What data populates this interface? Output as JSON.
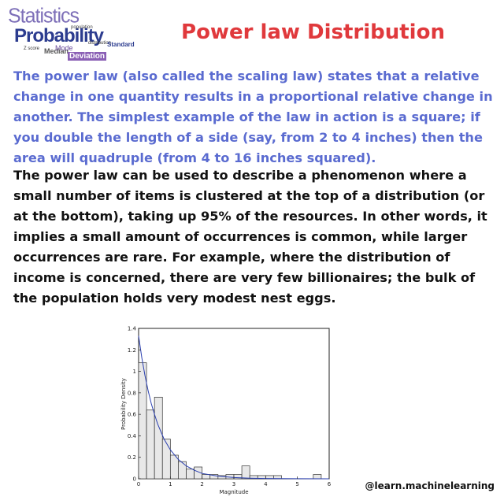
{
  "logo": {
    "statistics": "Statistics",
    "probability": "Probability",
    "population": "population",
    "median": "Median",
    "mode": "Mode",
    "distribution": "distribution",
    "standard": "Standard",
    "deviation": "Deviation",
    "zscore": "Z score"
  },
  "title": "Power law Distribution",
  "paragraph1": "The power law (also called the scaling law) states that a relative change in one quantity results in a proportional relative change in another. The simplest example of the law in action is a square; if you double the length of a side (say, from 2 to 4 inches) then the area will quadruple (from 4 to 16 inches squared).",
  "paragraph2": "The power law can be used to describe a phenomenon where a small number of items is clustered at the top of a distribution (or at the bottom), taking up 95% of the resources. In other words, it implies a small amount of occurrences is common, while larger occurrences are rare. For example, where the distribution of income is concerned, there are very few billionaires; the bulk of the population holds very modest nest eggs.",
  "chart_data": {
    "type": "bar",
    "xlabel": "Magnitude",
    "ylabel": "Probability Density",
    "xlim": [
      0,
      6
    ],
    "ylim": [
      0,
      1.4
    ],
    "xticks": [
      "0",
      "1",
      "2",
      "3",
      "4",
      "5",
      "6"
    ],
    "yticks": [
      "0",
      "0.2",
      "0.4",
      "0.6",
      "0.8",
      "1",
      "1.2",
      "1.4"
    ],
    "bin_width": 0.25,
    "bins_start": [
      0,
      0.25,
      0.5,
      0.75,
      1.0,
      1.25,
      1.5,
      1.75,
      2.0,
      2.25,
      2.5,
      2.75,
      3.0,
      3.25,
      3.5,
      3.75,
      4.0,
      4.25,
      4.5,
      4.75,
      5.0,
      5.25,
      5.5,
      5.75
    ],
    "values": [
      1.08,
      0.64,
      0.76,
      0.37,
      0.22,
      0.16,
      0.09,
      0.11,
      0.04,
      0.04,
      0.03,
      0.04,
      0.04,
      0.12,
      0.03,
      0.03,
      0.03,
      0.03,
      0.0,
      0.0,
      0.0,
      0.0,
      0.04,
      0.0
    ],
    "fit_curve": {
      "x": [
        0,
        0.1,
        0.2,
        0.3,
        0.4,
        0.5,
        0.6,
        0.8,
        1.0,
        1.25,
        1.5,
        1.75,
        2.0,
        2.5,
        3.0,
        3.5,
        4.0,
        5.0,
        6.0
      ],
      "y": [
        1.33,
        1.13,
        0.96,
        0.82,
        0.7,
        0.6,
        0.51,
        0.37,
        0.27,
        0.18,
        0.12,
        0.08,
        0.05,
        0.025,
        0.012,
        0.006,
        0.003,
        0.001,
        0.0
      ]
    },
    "grid": false,
    "colors": {
      "bar_fill": "#e8e8e8",
      "bar_stroke": "#333333",
      "curve": "#2a3fb0"
    }
  },
  "watermark": "@learn.machinelearning"
}
